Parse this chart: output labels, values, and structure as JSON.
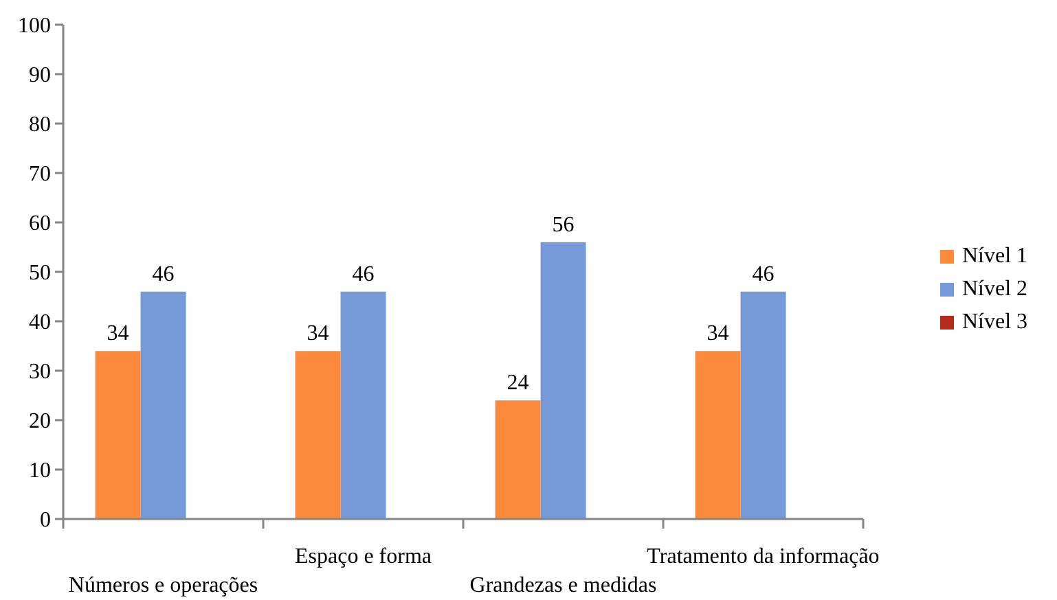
{
  "chart_data": {
    "type": "bar",
    "categories": [
      "Números e operações",
      "Espaço e forma",
      "Grandezas e medidas",
      "Tratamento da informação"
    ],
    "series": [
      {
        "name": "Nível 1",
        "color": "#fb8a3c",
        "values": [
          34,
          34,
          24,
          34
        ]
      },
      {
        "name": "Nível 2",
        "color": "#7699d7",
        "values": [
          46,
          46,
          56,
          46
        ]
      },
      {
        "name": "Nível 3",
        "color": "#b3291b",
        "values": [
          null,
          null,
          null,
          null
        ]
      }
    ],
    "ylim": [
      0,
      100
    ],
    "yticks": [
      0,
      10,
      20,
      30,
      40,
      50,
      60,
      70,
      80,
      90,
      100
    ],
    "legend": "right",
    "data_labels": true
  }
}
